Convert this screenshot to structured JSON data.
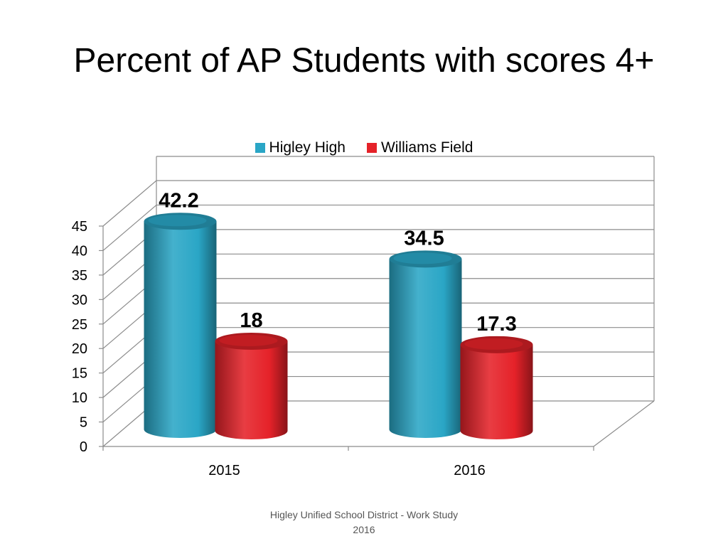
{
  "chart_data": {
    "type": "bar",
    "title": "Percent of AP Students with scores 4+",
    "categories": [
      "2015",
      "2016"
    ],
    "series": [
      {
        "name": "Higley High",
        "values": [
          42.2,
          34.5
        ],
        "labels": [
          "42.2",
          "34.5"
        ],
        "color": "#2aa6c6"
      },
      {
        "name": "Williams Field",
        "values": [
          18,
          17.3
        ],
        "labels": [
          "18",
          "17.3"
        ],
        "color": "#e52229"
      }
    ],
    "y_ticks": [
      "0",
      "5",
      "10",
      "15",
      "20",
      "25",
      "30",
      "35",
      "40",
      "45"
    ],
    "ylim": [
      0,
      45
    ],
    "grid": true,
    "legend_position": "top-center",
    "style": "3d-cylinder"
  },
  "footer": {
    "line1": "Higley Unified School District  - Work Study",
    "line2": "2016"
  }
}
